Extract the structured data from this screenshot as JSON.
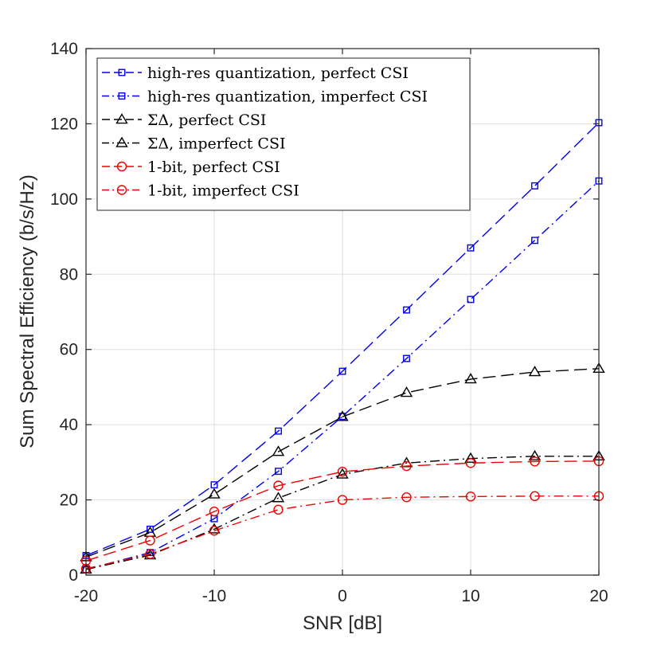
{
  "chart_data": {
    "type": "line",
    "title": "",
    "xlabel": "SNR [dB]",
    "ylabel": "Sum Spectral Efficiency (b/s/Hz)",
    "xlim": [
      -20,
      20
    ],
    "ylim": [
      0,
      140
    ],
    "xticks": [
      -20,
      -10,
      0,
      10,
      20
    ],
    "yticks": [
      0,
      20,
      40,
      60,
      80,
      100,
      120,
      140
    ],
    "grid": true,
    "legend_position": "top-left",
    "x": [
      -20,
      -15,
      -10,
      -5,
      0,
      5,
      10,
      15,
      20
    ],
    "series": [
      {
        "name": "high-res quantization, perfect CSI",
        "color": "#0000ee",
        "line": "dashed",
        "marker": "square",
        "values": [
          5.2,
          12.2,
          24.0,
          38.3,
          54.2,
          70.5,
          87.0,
          103.5,
          120.3
        ]
      },
      {
        "name": "high-res quantization, imperfect CSI",
        "color": "#0000ee",
        "line": "dashdot",
        "marker": "square",
        "values": [
          1.5,
          6.0,
          15.0,
          27.6,
          42.2,
          57.6,
          73.3,
          89.0,
          104.8
        ]
      },
      {
        "name": "ΣΔ, perfect CSI",
        "color": "#000000",
        "line": "dashed",
        "marker": "triangle",
        "values": [
          4.8,
          11.3,
          21.5,
          32.8,
          42.1,
          48.5,
          52.1,
          54.0,
          54.9
        ]
      },
      {
        "name": "ΣΔ, imperfect CSI",
        "color": "#000000",
        "line": "dashdot",
        "marker": "triangle",
        "values": [
          1.5,
          5.3,
          12.2,
          20.5,
          26.8,
          29.8,
          31.0,
          31.6,
          31.6
        ]
      },
      {
        "name": "1-bit, perfect CSI",
        "color": "#ee0000",
        "line": "dashed",
        "marker": "circle",
        "values": [
          3.8,
          9.2,
          16.9,
          23.8,
          27.5,
          29.0,
          29.8,
          30.2,
          30.3
        ]
      },
      {
        "name": "1-bit, imperfect CSI",
        "color": "#ee0000",
        "line": "dashdot",
        "marker": "circle",
        "values": [
          1.7,
          5.6,
          11.8,
          17.4,
          20.0,
          20.7,
          20.9,
          21.0,
          21.0
        ]
      }
    ]
  }
}
